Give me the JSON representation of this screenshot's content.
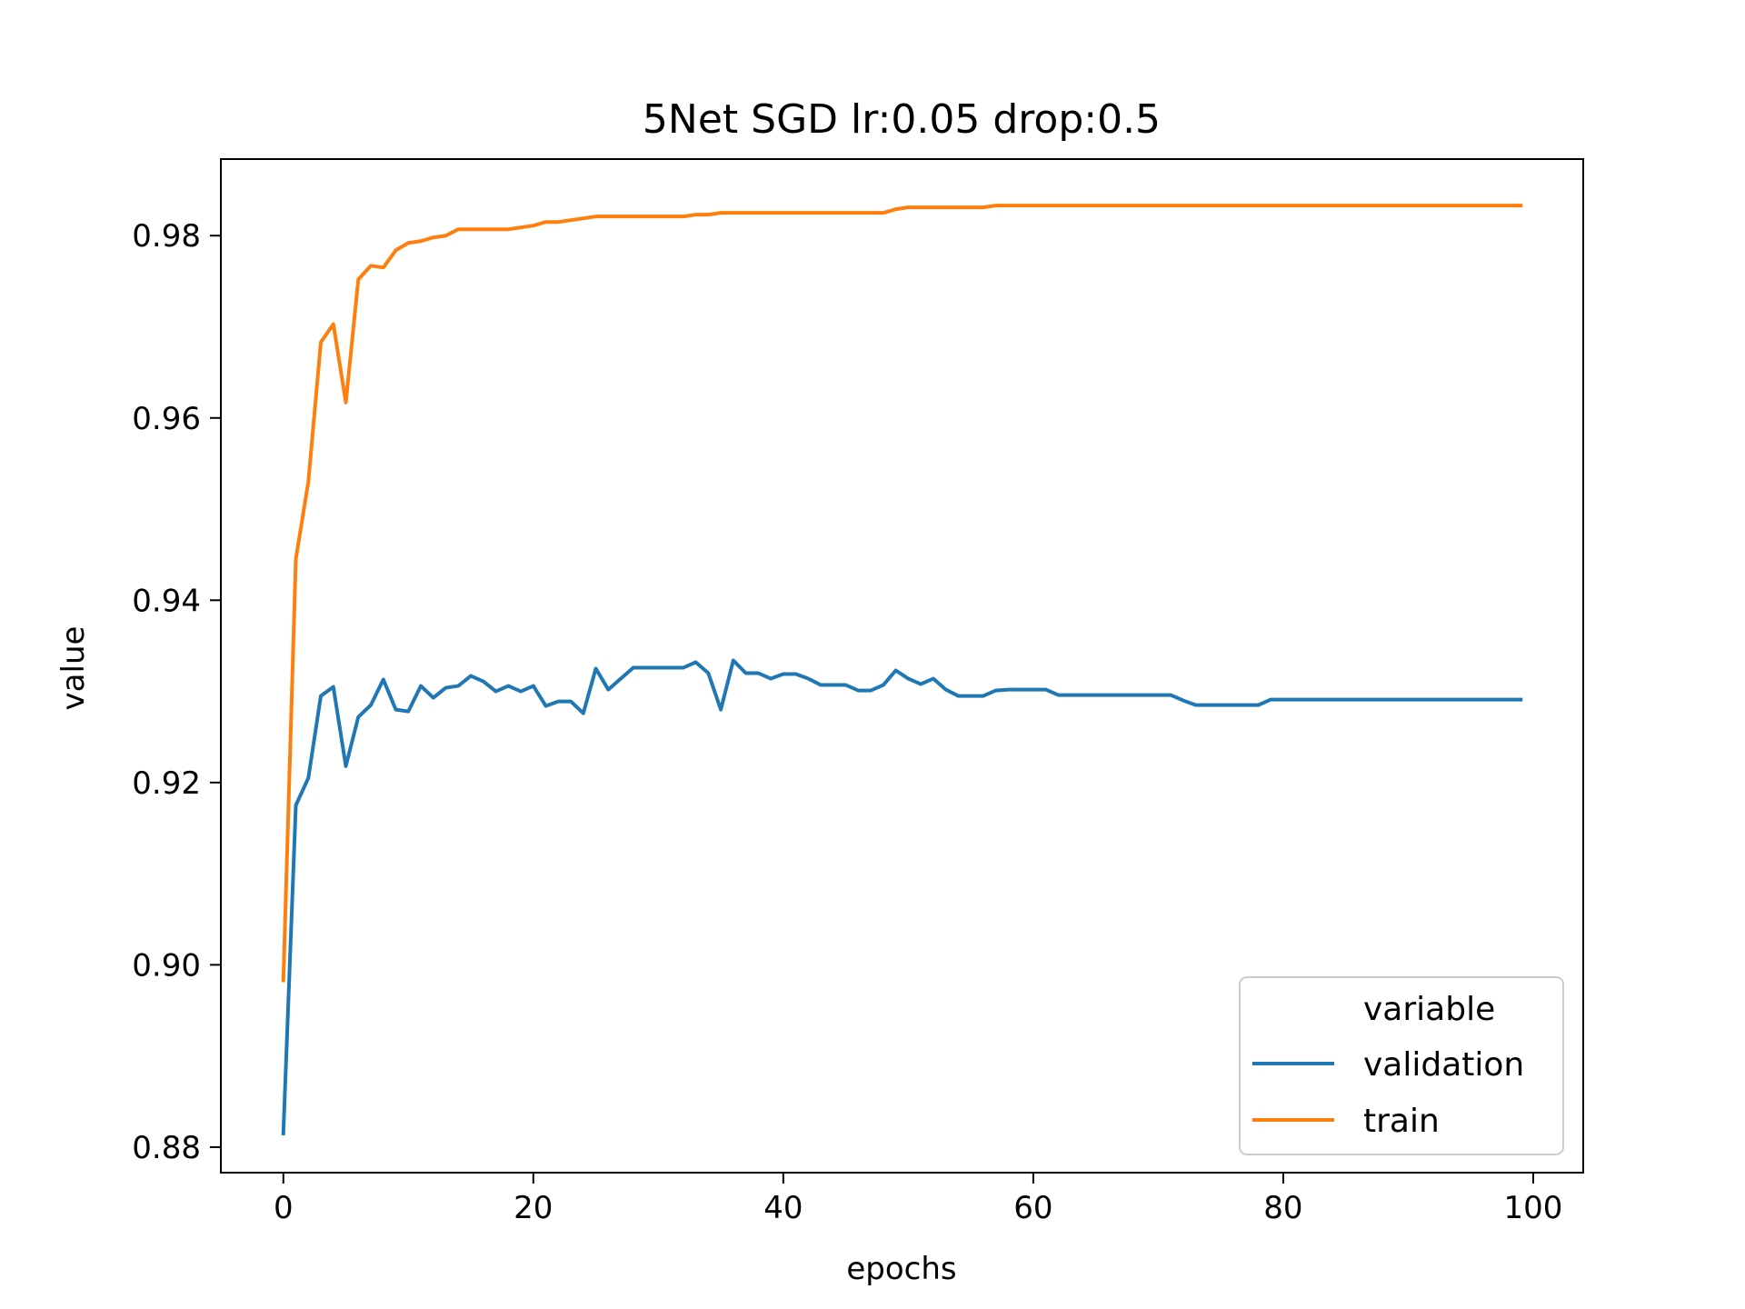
{
  "chart_data": {
    "type": "line",
    "title": "5Net SGD lr:0.05 drop:0.5",
    "xlabel": "epochs",
    "ylabel": "value",
    "xlim": [
      -5,
      104
    ],
    "ylim": [
      0.8772,
      0.9884
    ],
    "xticks": [
      0,
      20,
      40,
      60,
      80,
      100
    ],
    "xtick_labels": [
      "0",
      "20",
      "40",
      "60",
      "80",
      "100"
    ],
    "yticks": [
      0.88,
      0.9,
      0.92,
      0.94,
      0.96,
      0.98
    ],
    "ytick_labels": [
      "0.88",
      "0.90",
      "0.92",
      "0.94",
      "0.96",
      "0.98"
    ],
    "grid": false,
    "legend": {
      "title": "variable",
      "placement": "lower-right",
      "entries": [
        "validation",
        "train"
      ]
    },
    "series": [
      {
        "name": "validation",
        "color": "#1f77b4",
        "points": [
          [
            0,
            0.8815
          ],
          [
            1,
            0.9175
          ],
          [
            2,
            0.9205
          ],
          [
            3,
            0.9295
          ],
          [
            4,
            0.9305
          ],
          [
            5,
            0.9218
          ],
          [
            6,
            0.9272
          ],
          [
            7,
            0.9285
          ],
          [
            8,
            0.9313
          ],
          [
            9,
            0.928
          ],
          [
            10,
            0.9278
          ],
          [
            11,
            0.9306
          ],
          [
            12,
            0.9293
          ],
          [
            13,
            0.9304
          ],
          [
            14,
            0.9306
          ],
          [
            15,
            0.9317
          ],
          [
            16,
            0.9311
          ],
          [
            17,
            0.93
          ],
          [
            18,
            0.9306
          ],
          [
            19,
            0.93
          ],
          [
            20,
            0.9306
          ],
          [
            21,
            0.9284
          ],
          [
            22,
            0.9289
          ],
          [
            23,
            0.9289
          ],
          [
            24,
            0.9276
          ],
          [
            25,
            0.9325
          ],
          [
            26,
            0.9302
          ],
          [
            27,
            0.9314
          ],
          [
            28,
            0.9326
          ],
          [
            29,
            0.9326
          ],
          [
            30,
            0.9326
          ],
          [
            31,
            0.9326
          ],
          [
            32,
            0.9326
          ],
          [
            33,
            0.9332
          ],
          [
            34,
            0.932
          ],
          [
            35,
            0.928
          ],
          [
            36,
            0.9334
          ],
          [
            37,
            0.932
          ],
          [
            38,
            0.932
          ],
          [
            39,
            0.9314
          ],
          [
            40,
            0.9319
          ],
          [
            41,
            0.9319
          ],
          [
            42,
            0.9314
          ],
          [
            43,
            0.9307
          ],
          [
            44,
            0.9307
          ],
          [
            45,
            0.9307
          ],
          [
            46,
            0.9301
          ],
          [
            47,
            0.9301
          ],
          [
            48,
            0.9307
          ],
          [
            49,
            0.9323
          ],
          [
            50,
            0.9314
          ],
          [
            51,
            0.9308
          ],
          [
            52,
            0.9314
          ],
          [
            53,
            0.9302
          ],
          [
            54,
            0.9295
          ],
          [
            55,
            0.9295
          ],
          [
            56,
            0.9295
          ],
          [
            57,
            0.9301
          ],
          [
            58,
            0.9302
          ],
          [
            59,
            0.9302
          ],
          [
            60,
            0.9302
          ],
          [
            61,
            0.9302
          ],
          [
            62,
            0.9296
          ],
          [
            63,
            0.9296
          ],
          [
            64,
            0.9296
          ],
          [
            65,
            0.9296
          ],
          [
            66,
            0.9296
          ],
          [
            67,
            0.9296
          ],
          [
            68,
            0.9296
          ],
          [
            69,
            0.9296
          ],
          [
            70,
            0.9296
          ],
          [
            71,
            0.9296
          ],
          [
            72,
            0.929
          ],
          [
            73,
            0.9285
          ],
          [
            74,
            0.9285
          ],
          [
            75,
            0.9285
          ],
          [
            76,
            0.9285
          ],
          [
            77,
            0.9285
          ],
          [
            78,
            0.9285
          ],
          [
            79,
            0.9291
          ],
          [
            80,
            0.9291
          ],
          [
            81,
            0.9291
          ],
          [
            82,
            0.9291
          ],
          [
            83,
            0.9291
          ],
          [
            84,
            0.9291
          ],
          [
            85,
            0.9291
          ],
          [
            86,
            0.9291
          ],
          [
            87,
            0.9291
          ],
          [
            88,
            0.9291
          ],
          [
            89,
            0.9291
          ],
          [
            90,
            0.9291
          ],
          [
            91,
            0.9291
          ],
          [
            92,
            0.9291
          ],
          [
            93,
            0.9291
          ],
          [
            94,
            0.9291
          ],
          [
            95,
            0.9291
          ],
          [
            96,
            0.9291
          ],
          [
            97,
            0.9291
          ],
          [
            98,
            0.9291
          ],
          [
            99,
            0.9291
          ]
        ]
      },
      {
        "name": "train",
        "color": "#ff7f0e",
        "points": [
          [
            0,
            0.8983
          ],
          [
            1,
            0.9445
          ],
          [
            2,
            0.953
          ],
          [
            3,
            0.9683
          ],
          [
            4,
            0.9703
          ],
          [
            5,
            0.9617
          ],
          [
            6,
            0.9752
          ],
          [
            7,
            0.9767
          ],
          [
            8,
            0.9765
          ],
          [
            9,
            0.9784
          ],
          [
            10,
            0.9792
          ],
          [
            11,
            0.9794
          ],
          [
            12,
            0.9798
          ],
          [
            13,
            0.98
          ],
          [
            14,
            0.9807
          ],
          [
            15,
            0.9807
          ],
          [
            16,
            0.9807
          ],
          [
            17,
            0.9807
          ],
          [
            18,
            0.9807
          ],
          [
            19,
            0.9809
          ],
          [
            20,
            0.9811
          ],
          [
            21,
            0.9815
          ],
          [
            22,
            0.9815
          ],
          [
            23,
            0.9817
          ],
          [
            24,
            0.9819
          ],
          [
            25,
            0.9821
          ],
          [
            26,
            0.9821
          ],
          [
            27,
            0.9821
          ],
          [
            28,
            0.9821
          ],
          [
            29,
            0.9821
          ],
          [
            30,
            0.9821
          ],
          [
            31,
            0.9821
          ],
          [
            32,
            0.9821
          ],
          [
            33,
            0.9823
          ],
          [
            34,
            0.9823
          ],
          [
            35,
            0.9825
          ],
          [
            36,
            0.9825
          ],
          [
            37,
            0.9825
          ],
          [
            38,
            0.9825
          ],
          [
            39,
            0.9825
          ],
          [
            40,
            0.9825
          ],
          [
            41,
            0.9825
          ],
          [
            42,
            0.9825
          ],
          [
            43,
            0.9825
          ],
          [
            44,
            0.9825
          ],
          [
            45,
            0.9825
          ],
          [
            46,
            0.9825
          ],
          [
            47,
            0.9825
          ],
          [
            48,
            0.9825
          ],
          [
            49,
            0.9829
          ],
          [
            50,
            0.9831
          ],
          [
            51,
            0.9831
          ],
          [
            52,
            0.9831
          ],
          [
            53,
            0.9831
          ],
          [
            54,
            0.9831
          ],
          [
            55,
            0.9831
          ],
          [
            56,
            0.9831
          ],
          [
            57,
            0.9833
          ],
          [
            58,
            0.9833
          ],
          [
            59,
            0.9833
          ],
          [
            60,
            0.9833
          ],
          [
            61,
            0.9833
          ],
          [
            62,
            0.9833
          ],
          [
            63,
            0.9833
          ],
          [
            64,
            0.9833
          ],
          [
            65,
            0.9833
          ],
          [
            66,
            0.9833
          ],
          [
            67,
            0.9833
          ],
          [
            68,
            0.9833
          ],
          [
            69,
            0.9833
          ],
          [
            70,
            0.9833
          ],
          [
            71,
            0.9833
          ],
          [
            72,
            0.9833
          ],
          [
            73,
            0.9833
          ],
          [
            74,
            0.9833
          ],
          [
            75,
            0.9833
          ],
          [
            76,
            0.9833
          ],
          [
            77,
            0.9833
          ],
          [
            78,
            0.9833
          ],
          [
            79,
            0.9833
          ],
          [
            80,
            0.9833
          ],
          [
            81,
            0.9833
          ],
          [
            82,
            0.9833
          ],
          [
            83,
            0.9833
          ],
          [
            84,
            0.9833
          ],
          [
            85,
            0.9833
          ],
          [
            86,
            0.9833
          ],
          [
            87,
            0.9833
          ],
          [
            88,
            0.9833
          ],
          [
            89,
            0.9833
          ],
          [
            90,
            0.9833
          ],
          [
            91,
            0.9833
          ],
          [
            92,
            0.9833
          ],
          [
            93,
            0.9833
          ],
          [
            94,
            0.9833
          ],
          [
            95,
            0.9833
          ],
          [
            96,
            0.9833
          ],
          [
            97,
            0.9833
          ],
          [
            98,
            0.9833
          ],
          [
            99,
            0.9833
          ]
        ]
      }
    ]
  }
}
